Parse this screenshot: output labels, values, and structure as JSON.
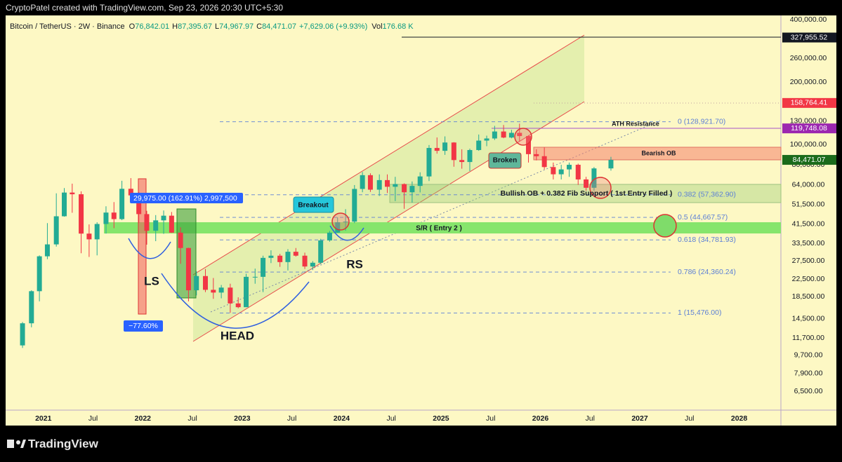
{
  "header": {
    "caption": "CryptoPatel created with TradingView.com, Sep 23, 2026 20:30 UTC+5:30"
  },
  "footer": {
    "brand": "TradingView"
  },
  "chart_data": {
    "type": "candlestick",
    "title": "Bitcoin / TetherUS · 2W · Binance",
    "ohlc_legend": [
      {
        "label": "O",
        "value": "76,842.01"
      },
      {
        "label": "H",
        "value": "87,395.67"
      },
      {
        "label": "L",
        "value": "74,967.97"
      },
      {
        "label": "C",
        "value": "84,471.07"
      }
    ],
    "change": "+7,629.06 (+9.93%)",
    "volume": {
      "label": "Vol",
      "value": "176.68 K"
    },
    "colors": {
      "up": "#22ab94",
      "down": "#f23645"
    },
    "x": [
      2020.79,
      2020.88,
      2020.96,
      2021.04,
      2021.13,
      2021.21,
      2021.29,
      2021.38,
      2021.46,
      2021.54,
      2021.63,
      2021.71,
      2021.79,
      2021.88,
      2021.96,
      2022.04,
      2022.13,
      2022.21,
      2022.29,
      2022.38,
      2022.46,
      2022.54,
      2022.63,
      2022.71,
      2022.79,
      2022.88,
      2022.96,
      2023.04,
      2023.13,
      2023.21,
      2023.29,
      2023.38,
      2023.46,
      2023.54,
      2023.63,
      2023.71,
      2023.79,
      2023.88,
      2023.96,
      2024.04,
      2024.13,
      2024.21,
      2024.29,
      2024.38,
      2024.46,
      2024.54,
      2024.63,
      2024.71,
      2024.79,
      2024.88,
      2024.96,
      2025.04,
      2025.13,
      2025.21,
      2025.29,
      2025.38,
      2025.46,
      2025.54,
      2025.63,
      2025.71,
      2025.79,
      2025.88,
      2025.96,
      2026.04,
      2026.13,
      2026.21,
      2026.29,
      2026.38,
      2026.46,
      2026.54,
      2026.71
    ],
    "candles": [
      [
        10800,
        14000,
        10500,
        13800
      ],
      [
        13800,
        19900,
        13200,
        19700
      ],
      [
        19700,
        29300,
        17600,
        29000
      ],
      [
        29000,
        41900,
        28100,
        33100
      ],
      [
        33100,
        58300,
        32300,
        45200
      ],
      [
        45200,
        61800,
        45000,
        58800
      ],
      [
        58800,
        64900,
        47000,
        57700
      ],
      [
        57700,
        59600,
        30000,
        37300
      ],
      [
        37300,
        41300,
        28800,
        35000
      ],
      [
        35000,
        42300,
        29300,
        41500
      ],
      [
        41500,
        50500,
        37300,
        47100
      ],
      [
        47100,
        52900,
        39600,
        43800
      ],
      [
        43800,
        67000,
        43300,
        61300
      ],
      [
        61300,
        69000,
        53300,
        57000
      ],
      [
        57000,
        59100,
        42000,
        46300
      ],
      [
        46300,
        48000,
        33000,
        38500
      ],
      [
        38500,
        45800,
        34300,
        43200
      ],
      [
        43200,
        48200,
        37200,
        45500
      ],
      [
        45500,
        47400,
        37600,
        37700
      ],
      [
        37700,
        40000,
        26700,
        31800
      ],
      [
        31800,
        31900,
        17600,
        19900
      ],
      [
        19900,
        24600,
        18800,
        23300
      ],
      [
        23300,
        25200,
        19500,
        20000
      ],
      [
        20000,
        22800,
        18100,
        19400
      ],
      [
        19400,
        21100,
        18200,
        20500
      ],
      [
        20500,
        21400,
        15500,
        17200
      ],
      [
        17200,
        18400,
        16300,
        16500
      ],
      [
        16500,
        23900,
        16500,
        23100
      ],
      [
        23100,
        25300,
        21400,
        23100
      ],
      [
        23100,
        29200,
        19500,
        28500
      ],
      [
        28500,
        31000,
        26900,
        29200
      ],
      [
        29200,
        29800,
        25800,
        27200
      ],
      [
        27200,
        31400,
        24800,
        30500
      ],
      [
        30500,
        31800,
        28900,
        29200
      ],
      [
        29200,
        30200,
        25200,
        25900
      ],
      [
        25900,
        27500,
        24900,
        27000
      ],
      [
        27000,
        35200,
        26600,
        34600
      ],
      [
        34600,
        38400,
        34100,
        37700
      ],
      [
        37700,
        44700,
        37600,
        42300
      ],
      [
        42300,
        48900,
        38500,
        42600
      ],
      [
        42600,
        63900,
        41900,
        61200
      ],
      [
        61200,
        73800,
        59000,
        71300
      ],
      [
        71300,
        72800,
        59200,
        60700
      ],
      [
        60700,
        71900,
        56600,
        67500
      ],
      [
        67500,
        71900,
        58500,
        62700
      ],
      [
        62700,
        70000,
        53500,
        64600
      ],
      [
        64600,
        65100,
        49100,
        59000
      ],
      [
        59000,
        66500,
        52600,
        63300
      ],
      [
        63300,
        73600,
        58900,
        70300
      ],
      [
        70300,
        99600,
        66800,
        96400
      ],
      [
        96400,
        108300,
        90500,
        93400
      ],
      [
        93400,
        109600,
        89300,
        102400
      ],
      [
        102400,
        102800,
        78300,
        84300
      ],
      [
        84300,
        95000,
        76600,
        82500
      ],
      [
        82500,
        95700,
        74600,
        94200
      ],
      [
        94200,
        111900,
        93400,
        104600
      ],
      [
        104600,
        110500,
        98300,
        107100
      ],
      [
        107100,
        123200,
        105300,
        115700
      ],
      [
        115700,
        124400,
        107400,
        108200
      ],
      [
        108200,
        117900,
        107300,
        114000
      ],
      [
        114000,
        126200,
        103500,
        110000
      ],
      [
        110000,
        111000,
        82000,
        90000
      ],
      [
        90000,
        95000,
        84000,
        88000
      ],
      [
        88000,
        97000,
        76000,
        78000
      ],
      [
        78000,
        82000,
        68000,
        72000
      ],
      [
        72000,
        80000,
        68000,
        76000
      ],
      [
        76000,
        82000,
        70000,
        80000
      ],
      [
        80000,
        81000,
        64000,
        68000
      ],
      [
        68000,
        70000,
        60000,
        62000
      ],
      [
        62000,
        78000,
        60000,
        76842.01
      ],
      [
        76842.01,
        87395.67,
        74967.97,
        84471.07
      ]
    ],
    "xlim": [
      2020.62,
      2028.42
    ],
    "xticks": [
      2021,
      {
        "value": 2021.5,
        "label": "Jul"
      },
      2022,
      {
        "value": 2022.5,
        "label": "Jul"
      },
      2023,
      {
        "value": 2023.5,
        "label": "Jul"
      },
      2024,
      {
        "value": 2024.5,
        "label": "Jul"
      },
      2025,
      {
        "value": 2025.5,
        "label": "Jul"
      },
      2026,
      {
        "value": 2026.5,
        "label": "Jul"
      },
      2027,
      {
        "value": 2027.5,
        "label": "Jul"
      },
      2028
    ],
    "ylim": [
      5270,
      419000
    ],
    "log_scale": true,
    "yticks": [
      {
        "value": 400000,
        "label": "400,000.00"
      },
      {
        "value": 260000,
        "label": "260,000.00"
      },
      {
        "value": 200000,
        "label": "200,000.00"
      },
      {
        "value": 130000,
        "label": "130,000.00"
      },
      {
        "value": 100000,
        "label": "100,000.00"
      },
      {
        "value": 80000,
        "label": "80,000.00"
      },
      {
        "value": 64000,
        "label": "64,000.00"
      },
      {
        "value": 51500,
        "label": "51,500.00"
      },
      {
        "value": 41500,
        "label": "41,500.00"
      },
      {
        "value": 33500,
        "label": "33,500.00"
      },
      {
        "value": 27500,
        "label": "27,500.00"
      },
      {
        "value": 22500,
        "label": "22,500.00"
      },
      {
        "value": 18500,
        "label": "18,500.00"
      },
      {
        "value": 14500,
        "label": "14,500.00"
      },
      {
        "value": 11700,
        "label": "11,700.00"
      },
      {
        "value": 9700,
        "label": "9,700.00"
      },
      {
        "value": 7900,
        "label": "7,900.00"
      },
      {
        "value": 6500,
        "label": "6,500.00"
      }
    ],
    "price_tags": {
      "values": [
        327955.52,
        158764.41,
        119748.08,
        84471.07
      ],
      "value_labels": [
        "327,955.52",
        "158,764.41",
        "119,748.08",
        "84,471.07"
      ],
      "colors": [
        "#131722",
        "#f23645",
        "#9c27b0",
        "#1b6b1b"
      ]
    },
    "fib_levels": {
      "values": [
        128921.7,
        57362.9,
        44667.57,
        34781.93,
        24360.24,
        15476
      ],
      "value_labels": [
        "0 (128,921.70)",
        "0.382 (57,362.90)",
        "0.5 (44,667.57)",
        "0.618 (34,781.93)",
        "0.786 (24,360.24)",
        "1 (15,476.00)"
      ],
      "color": "#5b7fd6"
    },
    "annotations": {
      "breakout": "Breakout",
      "broken": "Broken",
      "ath_resistance": "ATH Resistance",
      "bearish_ob": "Bearish OB",
      "bullish_ob": "Bullish OB + 0.382 Fib Support ( 1st Entry Filled )",
      "sr": "S/R ( Entry 2 )",
      "ls": "LS",
      "head": "HEAD",
      "rs": "RS",
      "measure_up": "29,975.00 (162.91%) 2,997,500",
      "measure_down": "−77.60%"
    }
  }
}
